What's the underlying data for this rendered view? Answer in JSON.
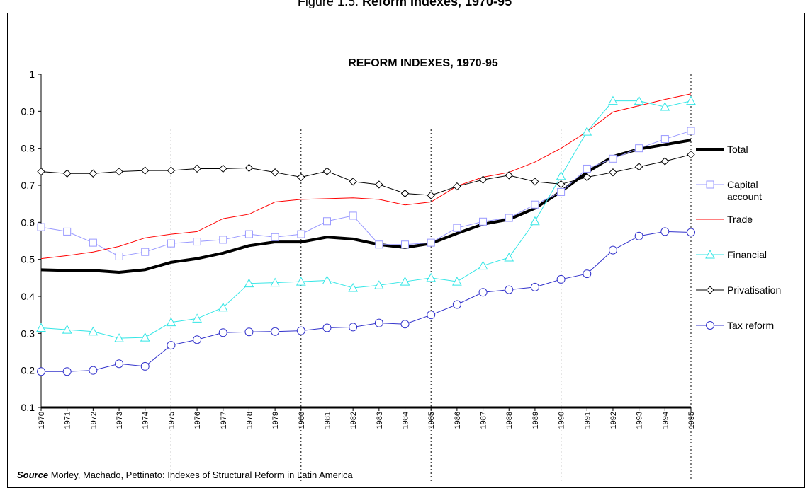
{
  "figure_label": "Figure 1.5:",
  "figure_title": "Reform Indexes, 1970-95",
  "chart_data": {
    "type": "line",
    "title": "REFORM INDEXES, 1970-95",
    "categories": [
      "1970",
      "1971",
      "1972",
      "1973",
      "1974",
      "1975",
      "1976",
      "1977",
      "1978",
      "1979",
      "1980",
      "1981",
      "1982",
      "1983",
      "1984",
      "1985",
      "1986",
      "1987",
      "1988",
      "1989",
      "1990",
      "1991",
      "1992",
      "1993",
      "1994",
      "1995"
    ],
    "ylim": [
      0.1,
      1
    ],
    "yticks": [
      0.1,
      0.2,
      0.3,
      0.4,
      0.5,
      0.6,
      0.7,
      0.8,
      0.9,
      1
    ],
    "series": [
      {
        "name": "Total",
        "color": "#000000",
        "marker": "none",
        "values": [
          0.472,
          0.47,
          0.47,
          0.465,
          0.472,
          0.492,
          0.502,
          0.517,
          0.537,
          0.547,
          0.547,
          0.56,
          0.555,
          0.54,
          0.532,
          0.543,
          0.57,
          0.595,
          0.608,
          0.638,
          0.683,
          0.735,
          0.778,
          0.798,
          0.81,
          0.822
        ]
      },
      {
        "name": "Capital account",
        "color": "#9999ff",
        "marker": "square",
        "values": [
          0.587,
          0.575,
          0.545,
          0.508,
          0.52,
          0.543,
          0.548,
          0.553,
          0.568,
          0.56,
          0.568,
          0.603,
          0.618,
          0.54,
          0.54,
          0.545,
          0.585,
          0.602,
          0.612,
          0.648,
          0.682,
          0.745,
          0.772,
          0.8,
          0.825,
          0.847
        ]
      },
      {
        "name": "Trade",
        "color": "#ff0000",
        "marker": "none",
        "values": [
          0.502,
          0.51,
          0.52,
          0.535,
          0.558,
          0.568,
          0.575,
          0.61,
          0.622,
          0.655,
          0.662,
          0.664,
          0.666,
          0.662,
          0.647,
          0.655,
          0.698,
          0.722,
          0.735,
          0.763,
          0.8,
          0.845,
          0.898,
          0.915,
          0.932,
          0.947
        ]
      },
      {
        "name": "Financial",
        "color": "#33e6e6",
        "marker": "triangle",
        "values": [
          0.315,
          0.31,
          0.305,
          0.287,
          0.289,
          0.33,
          0.34,
          0.37,
          0.435,
          0.437,
          0.44,
          0.443,
          0.423,
          0.43,
          0.44,
          0.45,
          0.44,
          0.483,
          0.505,
          0.603,
          0.725,
          0.845,
          0.928,
          0.928,
          0.912,
          0.928
        ]
      },
      {
        "name": "Privatisation",
        "color": "#000000",
        "marker": "diamond",
        "values": [
          0.737,
          0.732,
          0.732,
          0.737,
          0.74,
          0.74,
          0.745,
          0.745,
          0.747,
          0.735,
          0.722,
          0.738,
          0.71,
          0.702,
          0.678,
          0.673,
          0.697,
          0.715,
          0.727,
          0.71,
          0.703,
          0.722,
          0.735,
          0.75,
          0.765,
          0.783
        ]
      },
      {
        "name": "Tax reform",
        "color": "#3333cc",
        "marker": "circle",
        "values": [
          0.197,
          0.197,
          0.2,
          0.218,
          0.211,
          0.268,
          0.283,
          0.302,
          0.304,
          0.305,
          0.307,
          0.315,
          0.317,
          0.328,
          0.325,
          0.35,
          0.378,
          0.411,
          0.418,
          0.425,
          0.446,
          0.461,
          0.525,
          0.563,
          0.575,
          0.573
        ]
      }
    ],
    "source_label": "Source",
    "source": "Morley, Machado, Pettinato: Indexes of Structural Reform in Latin America"
  }
}
